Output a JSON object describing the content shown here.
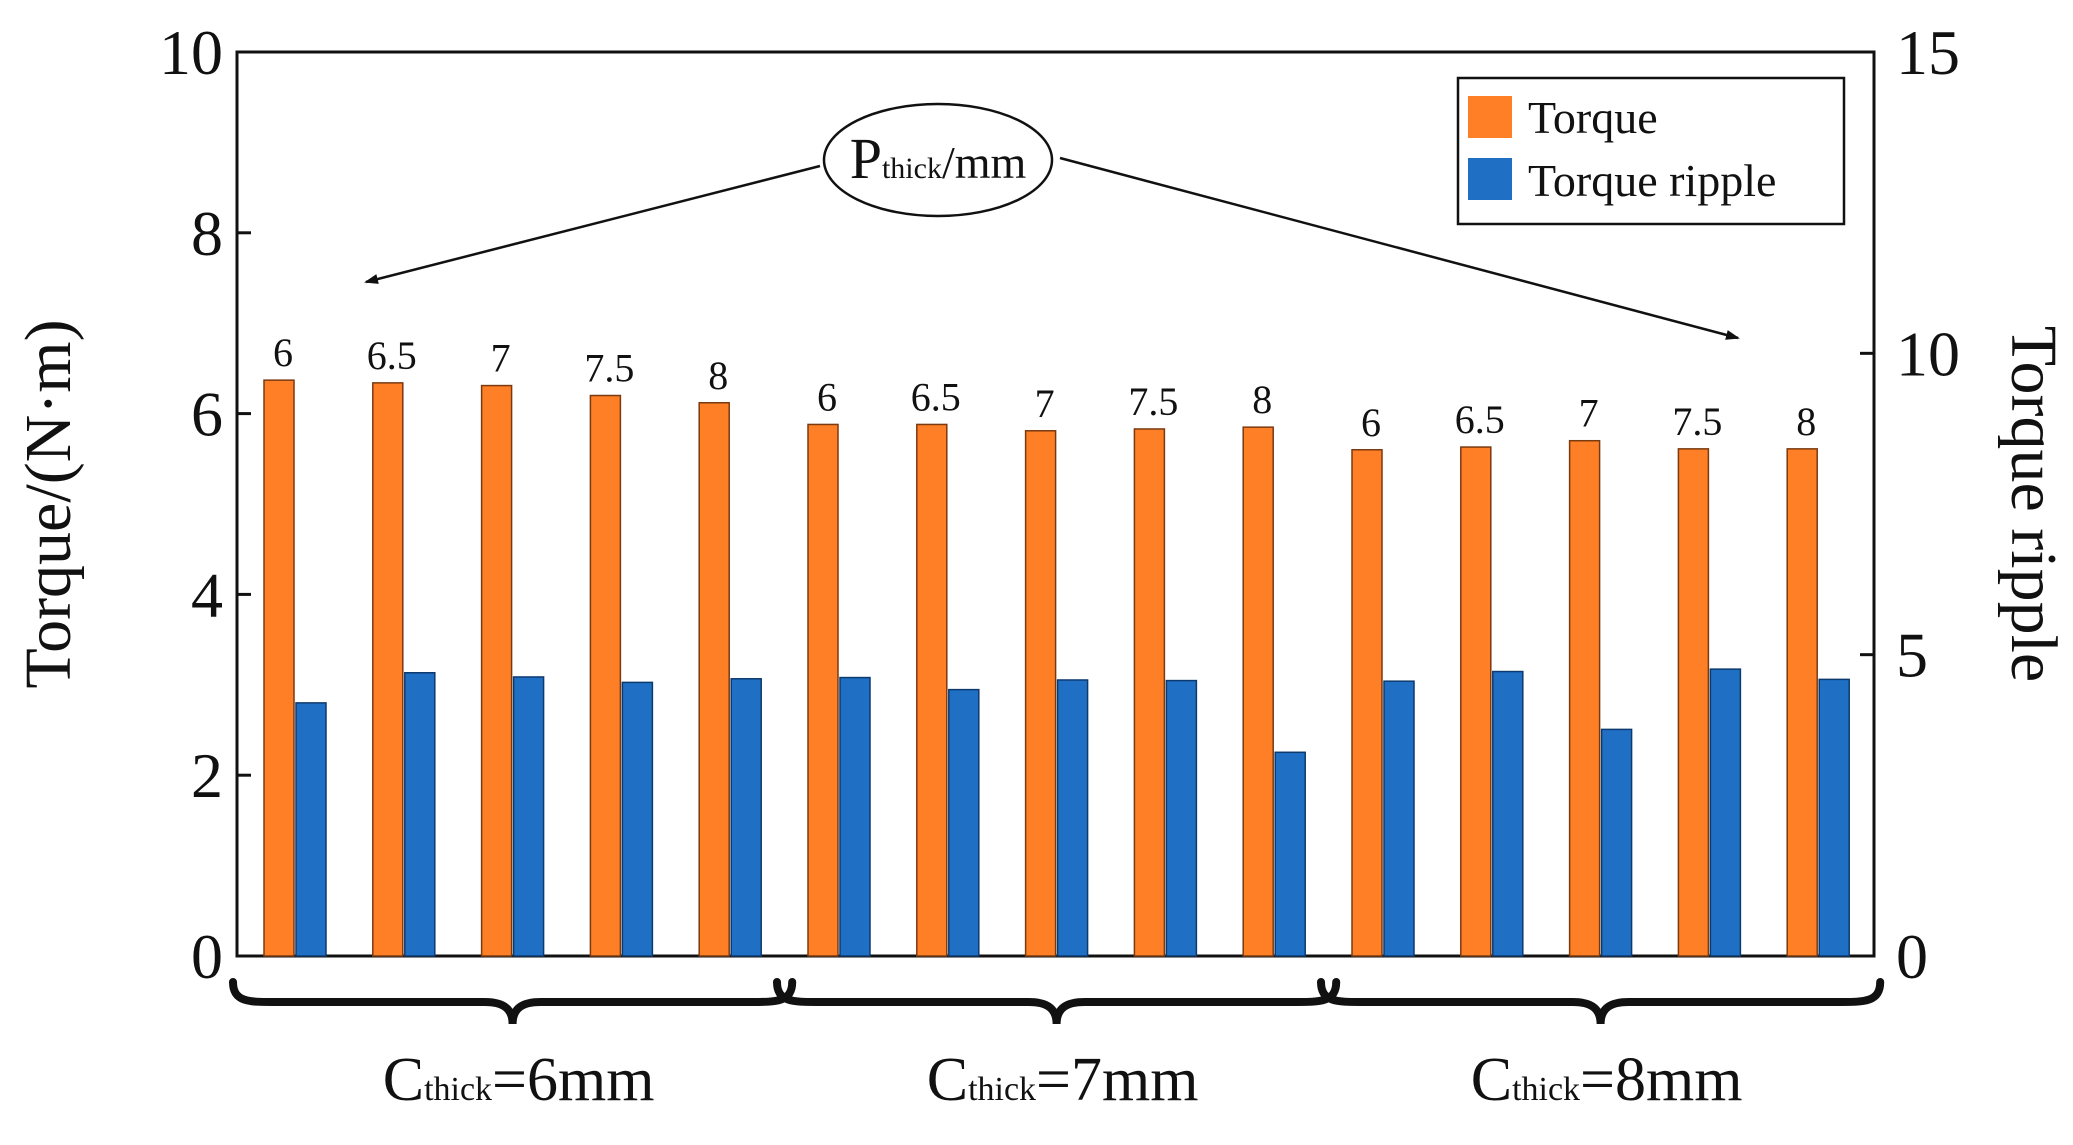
{
  "chart_data": {
    "type": "bar",
    "title": "",
    "ylabel": "Torque/(N·m)",
    "y2label": "Torque ripple",
    "ylim": [
      0,
      10
    ],
    "y2lim": [
      0,
      15
    ],
    "yticks": [
      "0",
      "2",
      "4",
      "6",
      "8",
      "10"
    ],
    "y2ticks": [
      "0",
      "5",
      "10",
      "15"
    ],
    "grid": false,
    "legend_position": "top-right",
    "categories": [
      "6",
      "6.5",
      "7",
      "7.5",
      "8",
      "6",
      "6.5",
      "7",
      "7.5",
      "8",
      "6",
      "6.5",
      "7",
      "7.5",
      "8"
    ],
    "series": [
      {
        "name": "Torque",
        "axis": "left",
        "color": "#ff7f27",
        "values": [
          6.37,
          6.34,
          6.31,
          6.2,
          6.12,
          5.88,
          5.88,
          5.81,
          5.83,
          5.85,
          5.6,
          5.63,
          5.7,
          5.61,
          5.61
        ]
      },
      {
        "name": "Torque ripple",
        "axis": "right",
        "color": "#1f6fc5",
        "values": [
          4.2,
          4.7,
          4.63,
          4.54,
          4.6,
          4.62,
          4.42,
          4.58,
          4.57,
          3.38,
          4.56,
          4.72,
          3.76,
          4.76,
          4.59
        ]
      }
    ],
    "groups": [
      {
        "label_main": "C",
        "label_sub": "thick",
        "label_rest": "=6mm",
        "categories": [
          0,
          4
        ]
      },
      {
        "label_main": "C",
        "label_sub": "thick",
        "label_rest": "=7mm",
        "categories": [
          5,
          9
        ]
      },
      {
        "label_main": "C",
        "label_sub": "thick",
        "label_rest": "=8mm",
        "categories": [
          10,
          14
        ]
      }
    ],
    "annotation": {
      "main": "P",
      "sub": "thick",
      "rest": "/mm"
    }
  }
}
